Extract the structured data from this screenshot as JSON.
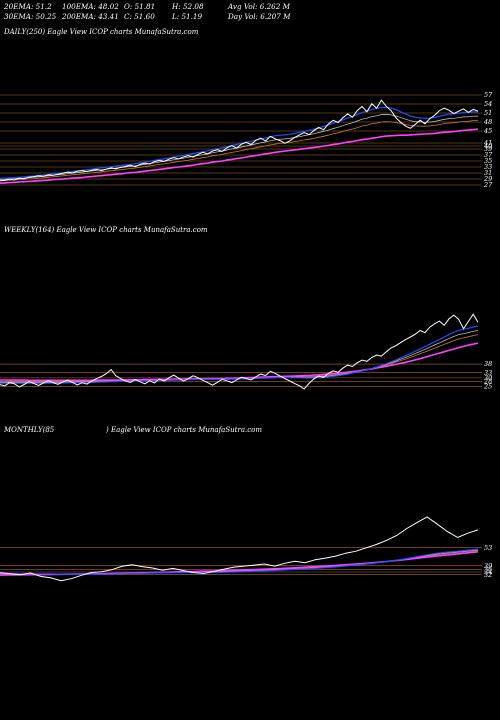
{
  "header": {
    "row1": {
      "ema20": "20EMA: 51.2",
      "ema100": "100EMA: 48.02",
      "open": "O: 51.81",
      "high": "H: 52.08",
      "avg_vol": "Avg Vol: 6.262  M"
    },
    "row2": {
      "ema30": "30EMA: 50.25",
      "ema200": "200EMA: 43.41",
      "close": "C: 51.60",
      "low": "L: 51.19",
      "day_vol": "Day Vol: 6.207 M"
    }
  },
  "panels": {
    "daily": {
      "label": "DAILY(250) Eagle  View  ICOP charts MunafaSutra.com"
    },
    "weekly": {
      "label": "WEEKLY(164) Eagle  View  ICOP charts MunafaSutra.com"
    },
    "monthly": {
      "label_left": "MONTHLY(85",
      "label_right": ") Eagle  View  ICOP charts MunafaSutra.com"
    }
  },
  "colors": {
    "background": "#000000",
    "price": "#ffffff",
    "ema_short": "#1f4fff",
    "ema_long": "#ff40ff",
    "ema_mid": "#d0d0d0",
    "gridline": "#c8783c",
    "ema_orange": "#c87a3a"
  },
  "chart_data": [
    {
      "type": "line",
      "name": "daily",
      "ylim": [
        27,
        57
      ],
      "yticks": [
        57,
        54,
        51,
        48,
        45,
        41,
        40,
        39,
        37,
        35,
        33,
        31,
        29,
        27
      ],
      "tick_labels": [
        "57",
        "54",
        "51",
        "48",
        "45",
        "41",
        "40",
        "39",
        "37",
        "35",
        "33",
        "31",
        "29",
        "27"
      ],
      "n": 250,
      "price": [
        28.4,
        28.6,
        28.9,
        28.7,
        29.3,
        29.1,
        29.6,
        29.8,
        30.1,
        29.9,
        30.4,
        30.2,
        30.6,
        30.9,
        31.3,
        31.0,
        31.6,
        31.8,
        31.5,
        31.9,
        32.2,
        31.8,
        32.3,
        32.7,
        32.4,
        32.9,
        33.2,
        33.6,
        33.1,
        33.9,
        34.3,
        34.0,
        34.8,
        35.2,
        34.9,
        35.6,
        36.1,
        35.7,
        36.4,
        36.8,
        36.3,
        37.2,
        37.9,
        37.4,
        38.3,
        38.8,
        38.2,
        39.4,
        40.1,
        39.3,
        40.6,
        41.2,
        40.5,
        41.9,
        42.6,
        41.7,
        43.2,
        42.4,
        41.8,
        40.9,
        41.7,
        42.8,
        43.7,
        44.5,
        43.8,
        45.1,
        46.2,
        45.4,
        47.3,
        48.6,
        47.8,
        49.4,
        50.7,
        49.6,
        51.8,
        53.2,
        51.4,
        54.1,
        52.6,
        55.3,
        53.2,
        51.8,
        49.4,
        47.9,
        46.6,
        45.9,
        47.2,
        48.6,
        47.4,
        49.1,
        50.2,
        51.8,
        52.6,
        51.9,
        50.8,
        51.6,
        52.4,
        51.2,
        52.2,
        51.6
      ],
      "ema_blue": [
        29.2,
        29.3,
        29.4,
        29.5,
        29.6,
        29.7,
        29.9,
        30.0,
        30.2,
        30.3,
        30.5,
        30.7,
        30.9,
        31.1,
        31.3,
        31.5,
        31.7,
        31.9,
        32.1,
        32.3,
        32.5,
        32.7,
        32.9,
        33.1,
        33.3,
        33.5,
        33.7,
        33.9,
        34.1,
        34.4,
        34.6,
        34.9,
        35.2,
        35.5,
        35.7,
        36.0,
        36.3,
        36.6,
        36.9,
        37.2,
        37.5,
        37.8,
        38.1,
        38.4,
        38.8,
        39.1,
        39.4,
        39.8,
        40.2,
        40.5,
        40.9,
        41.3,
        41.6,
        42.0,
        42.4,
        42.7,
        43.1,
        43.4,
        43.6,
        43.7,
        43.9,
        44.2,
        44.5,
        44.9,
        45.2,
        45.6,
        46.1,
        46.5,
        47.0,
        47.6,
        48.1,
        48.7,
        49.3,
        49.8,
        50.5,
        51.2,
        51.6,
        52.2,
        52.5,
        52.9,
        52.9,
        52.7,
        52.1,
        51.4,
        50.7,
        50.0,
        49.6,
        49.4,
        49.2,
        49.3,
        49.5,
        49.9,
        50.3,
        50.6,
        50.7,
        50.9,
        51.2,
        51.2,
        51.4,
        51.4
      ],
      "ema_magenta": [
        27.6,
        27.7,
        27.8,
        27.9,
        28.0,
        28.1,
        28.2,
        28.3,
        28.4,
        28.5,
        28.6,
        28.8,
        28.9,
        29.0,
        29.1,
        29.3,
        29.4,
        29.5,
        29.7,
        29.8,
        30.0,
        30.1,
        30.3,
        30.4,
        30.6,
        30.7,
        30.9,
        31.1,
        31.2,
        31.4,
        31.6,
        31.8,
        32.0,
        32.2,
        32.4,
        32.6,
        32.8,
        33.0,
        33.2,
        33.4,
        33.6,
        33.9,
        34.1,
        34.3,
        34.6,
        34.8,
        35.0,
        35.3,
        35.5,
        35.8,
        36.0,
        36.3,
        36.6,
        36.8,
        37.1,
        37.4,
        37.6,
        37.9,
        38.1,
        38.3,
        38.5,
        38.7,
        38.9,
        39.1,
        39.3,
        39.5,
        39.7,
        40.0,
        40.2,
        40.5,
        40.7,
        41.0,
        41.3,
        41.5,
        41.8,
        42.1,
        42.3,
        42.6,
        42.8,
        43.1,
        43.3,
        43.4,
        43.5,
        43.6,
        43.6,
        43.7,
        43.8,
        43.9,
        44.0,
        44.1,
        44.2,
        44.4,
        44.6,
        44.7,
        44.8,
        45.0,
        45.2,
        45.3,
        45.5,
        45.6
      ]
    },
    {
      "type": "line",
      "name": "weekly",
      "ylim": [
        23,
        75
      ],
      "yticks": [
        38,
        33,
        30,
        28,
        25
      ],
      "tick_labels": [
        "38",
        "33",
        "30",
        "28",
        "25"
      ],
      "n": 164,
      "price": [
        26.1,
        25.4,
        27.3,
        26.6,
        24.8,
        26.2,
        27.9,
        26.8,
        25.6,
        27.1,
        28.4,
        27.2,
        26.3,
        27.6,
        28.8,
        27.4,
        25.9,
        27.2,
        26.4,
        28.1,
        29.6,
        30.8,
        32.4,
        34.8,
        31.2,
        29.6,
        28.2,
        27.4,
        29.1,
        27.8,
        26.6,
        28.3,
        27.1,
        29.4,
        28.2,
        30.1,
        31.6,
        29.8,
        28.1,
        29.6,
        31.2,
        30.1,
        28.6,
        27.3,
        25.8,
        27.4,
        29.1,
        28.3,
        27.2,
        28.8,
        30.4,
        29.6,
        28.9,
        30.6,
        32.2,
        31.4,
        33.8,
        32.6,
        31.1,
        29.6,
        28.2,
        26.8,
        25.4,
        23.6,
        26.8,
        29.4,
        31.1,
        30.2,
        32.6,
        34.1,
        33.2,
        35.6,
        37.4,
        36.6,
        38.8,
        40.2,
        39.6,
        41.8,
        43.2,
        42.6,
        45.1,
        47.3,
        48.6,
        50.4,
        52.1,
        53.6,
        55.2,
        57.4,
        56.1,
        59.3,
        61.2,
        62.8,
        60.4,
        64.1,
        66.3,
        63.8,
        58.4,
        62.6,
        66.8,
        62.2
      ],
      "ema_blue": [
        27.0,
        27.0,
        27.0,
        27.0,
        26.9,
        26.9,
        26.9,
        26.9,
        26.9,
        26.9,
        27.0,
        27.0,
        27.0,
        27.1,
        27.1,
        27.2,
        27.2,
        27.3,
        27.3,
        27.4,
        27.5,
        27.6,
        27.7,
        27.8,
        27.9,
        28.0,
        28.1,
        28.1,
        28.2,
        28.2,
        28.2,
        28.3,
        28.3,
        28.4,
        28.5,
        28.6,
        28.7,
        28.8,
        28.9,
        29.0,
        29.1,
        29.2,
        29.2,
        29.2,
        29.2,
        29.2,
        29.2,
        29.2,
        29.3,
        29.3,
        29.4,
        29.5,
        29.6,
        29.7,
        29.8,
        29.9,
        30.0,
        30.1,
        30.2,
        30.2,
        30.2,
        30.1,
        30.1,
        30.0,
        30.0,
        30.0,
        30.1,
        30.3,
        30.6,
        30.9,
        31.3,
        31.7,
        32.2,
        32.8,
        33.4,
        34.0,
        34.7,
        35.5,
        36.3,
        37.2,
        38.2,
        39.3,
        40.4,
        41.6,
        42.8,
        44.1,
        45.4,
        46.7,
        48.0,
        49.4,
        50.8,
        52.2,
        53.6,
        55.0,
        56.4,
        57.5,
        58.0,
        58.6,
        59.4,
        59.9
      ],
      "ema_magenta": [
        28.8,
        28.8,
        28.7,
        28.7,
        28.7,
        28.7,
        28.6,
        28.6,
        28.6,
        28.6,
        28.6,
        28.6,
        28.6,
        28.6,
        28.6,
        28.6,
        28.6,
        28.6,
        28.6,
        28.6,
        28.7,
        28.7,
        28.7,
        28.8,
        28.8,
        28.8,
        28.9,
        28.9,
        28.9,
        28.9,
        29.0,
        29.0,
        29.0,
        29.1,
        29.1,
        29.2,
        29.2,
        29.3,
        29.3,
        29.4,
        29.4,
        29.5,
        29.5,
        29.6,
        29.6,
        29.7,
        29.7,
        29.8,
        29.8,
        29.9,
        30.0,
        30.1,
        30.2,
        30.3,
        30.4,
        30.5,
        30.6,
        30.7,
        30.8,
        30.9,
        31.0,
        31.1,
        31.2,
        31.3,
        31.4,
        31.6,
        31.8,
        32.0,
        32.2,
        32.4,
        32.7,
        33.0,
        33.3,
        33.6,
        34.0,
        34.4,
        34.8,
        35.2,
        35.7,
        36.2,
        36.7,
        37.2,
        37.8,
        38.4,
        39.0,
        39.7,
        40.4,
        41.1,
        41.9,
        42.7,
        43.5,
        44.3,
        45.1,
        45.9,
        46.7,
        47.5,
        48.2,
        48.9,
        49.5,
        50.1
      ]
    },
    {
      "type": "line",
      "name": "monthly",
      "ylim": [
        20,
        90
      ],
      "yticks": [
        53,
        39,
        36,
        34,
        32
      ],
      "tick_labels": [
        "53",
        "39",
        "36",
        "34",
        "32"
      ],
      "n": 85,
      "price": [
        33.4,
        32.6,
        31.8,
        33.2,
        30.6,
        29.4,
        27.2,
        28.8,
        31.4,
        33.6,
        34.2,
        35.8,
        38.4,
        39.6,
        38.2,
        37.1,
        35.4,
        36.8,
        35.2,
        33.6,
        32.8,
        34.4,
        36.2,
        37.8,
        38.6,
        39.4,
        40.2,
        38.6,
        40.8,
        42.4,
        41.2,
        43.6,
        44.8,
        46.4,
        48.6,
        50.2,
        52.8,
        55.4,
        58.6,
        62.4,
        67.8,
        72.4,
        76.8,
        71.2,
        65.4,
        60.8,
        64.2,
        66.8
      ],
      "ema_blue": [
        32.8,
        32.8,
        32.7,
        32.7,
        32.6,
        32.5,
        32.3,
        32.2,
        32.1,
        32.1,
        32.2,
        32.3,
        32.5,
        32.8,
        33.0,
        33.2,
        33.3,
        33.4,
        33.5,
        33.5,
        33.5,
        33.6,
        33.8,
        34.0,
        34.3,
        34.6,
        34.9,
        35.2,
        35.6,
        36.0,
        36.4,
        36.9,
        37.4,
        38.0,
        38.7,
        39.4,
        40.2,
        41.1,
        42.1,
        43.2,
        44.5,
        45.9,
        47.4,
        48.6,
        49.5,
        50.2,
        51.0,
        51.8
      ],
      "ema_magenta": [
        31.6,
        31.7,
        31.8,
        31.9,
        32.0,
        32.1,
        32.2,
        32.3,
        32.4,
        32.5,
        32.6,
        32.8,
        33.0,
        33.2,
        33.4,
        33.6,
        33.8,
        34.0,
        34.2,
        34.4,
        34.6,
        34.8,
        35.0,
        35.3,
        35.6,
        35.9,
        36.2,
        36.5,
        36.9,
        37.3,
        37.7,
        38.1,
        38.6,
        39.1,
        39.6,
        40.2,
        40.8,
        41.5,
        42.2,
        43.0,
        43.8,
        44.7,
        45.6,
        46.5,
        47.3,
        48.1,
        48.9,
        49.7
      ]
    }
  ]
}
